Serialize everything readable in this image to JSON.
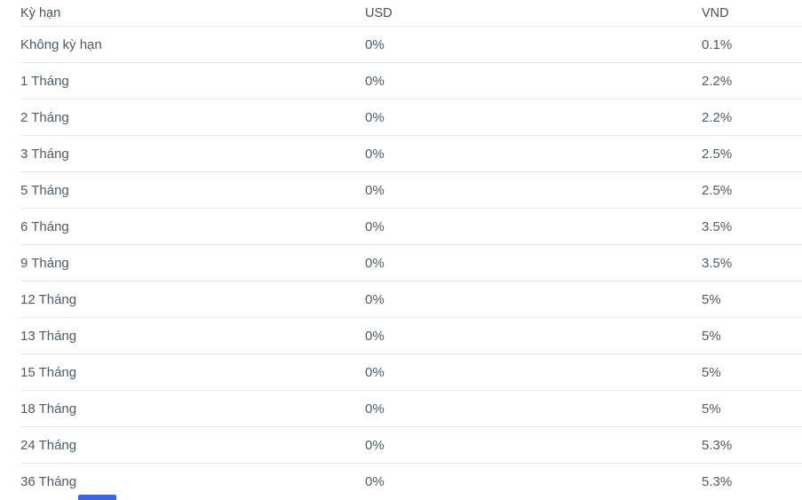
{
  "accent_color": "#3c64dc",
  "text_color": "#4e5a66",
  "separator_color": "#e7e8ea",
  "table": {
    "columns": [
      {
        "key": "term",
        "label": "Kỳ hạn"
      },
      {
        "key": "usd",
        "label": "USD"
      },
      {
        "key": "vnd",
        "label": "VND"
      }
    ],
    "rows": [
      {
        "term": "Không kỳ hạn",
        "usd": "0%",
        "vnd": "0.1%"
      },
      {
        "term": "1 Tháng",
        "usd": "0%",
        "vnd": "2.2%"
      },
      {
        "term": "2 Tháng",
        "usd": "0%",
        "vnd": "2.2%"
      },
      {
        "term": "3 Tháng",
        "usd": "0%",
        "vnd": "2.5%"
      },
      {
        "term": "5 Tháng",
        "usd": "0%",
        "vnd": "2.5%"
      },
      {
        "term": "6 Tháng",
        "usd": "0%",
        "vnd": "3.5%"
      },
      {
        "term": "9 Tháng",
        "usd": "0%",
        "vnd": "3.5%"
      },
      {
        "term": "12 Tháng",
        "usd": "0%",
        "vnd": "5%"
      },
      {
        "term": "13 Tháng",
        "usd": "0%",
        "vnd": "5%"
      },
      {
        "term": "15 Tháng",
        "usd": "0%",
        "vnd": "5%"
      },
      {
        "term": "18 Tháng",
        "usd": "0%",
        "vnd": "5%"
      },
      {
        "term": "24 Tháng",
        "usd": "0%",
        "vnd": "5.3%"
      },
      {
        "term": "36 Tháng",
        "usd": "0%",
        "vnd": "5.3%"
      }
    ]
  }
}
